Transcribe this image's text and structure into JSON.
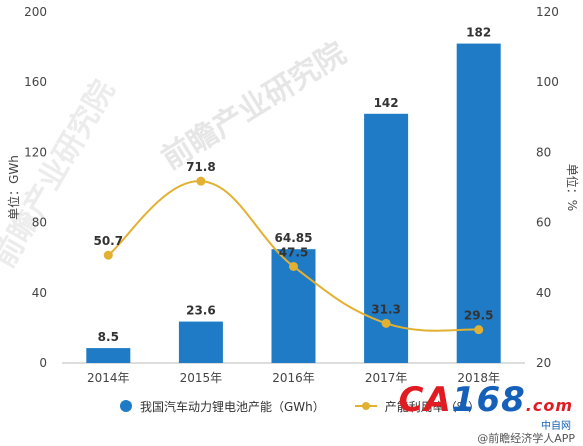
{
  "chart_data": {
    "type": "bar+line",
    "categories": [
      "2014年",
      "2015年",
      "2016年",
      "2017年",
      "2018年"
    ],
    "series": [
      {
        "name": "我国汽车动力锂电池产能（GWh）",
        "type": "bar",
        "axis": "left",
        "values": [
          8.5,
          23.6,
          64.85,
          142,
          182
        ],
        "labels": [
          "8.5",
          "23.6",
          "64.85",
          "142",
          "182"
        ],
        "color": "#1f7bc5"
      },
      {
        "name": "产能利用率（%）",
        "type": "line",
        "axis": "right",
        "values": [
          50.7,
          71.8,
          47.5,
          31.3,
          29.5
        ],
        "labels": [
          "50.7",
          "71.8",
          "47.5",
          "31.3",
          "29.5"
        ],
        "color": "#e3b132"
      }
    ],
    "ylabel_left": "单位：GWh",
    "ylabel_right": "单位：%",
    "ylim_left": [
      0,
      200
    ],
    "ylim_right": [
      20,
      120
    ],
    "yticks_left": [
      "0",
      "40",
      "80",
      "120",
      "160",
      "200"
    ],
    "yticks_right": [
      "20",
      "40",
      "60",
      "80",
      "100",
      "120"
    ],
    "grid": false,
    "legend_position": "bottom"
  },
  "legend": {
    "bar_label": "我国汽车动力锂电池产能（GWh）",
    "line_label": "产能利用率（%）"
  },
  "watermark": "前瞻产业研究院",
  "logo": {
    "part1": "CA",
    "part2": "168",
    "part3": ".com",
    "sub": "中自网"
  },
  "credit": "@前瞻经济学人APP"
}
